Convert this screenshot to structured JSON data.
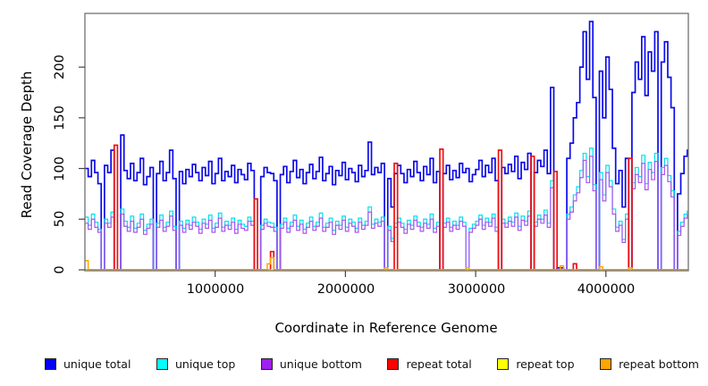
{
  "chart_data": {
    "type": "line",
    "subtype": "step-coverage-plot",
    "title": "",
    "xlabel": "Coordinate in Reference Genome",
    "ylabel": "Read Coverage Depth",
    "xlim": [
      0,
      4633000
    ],
    "ylim": [
      0,
      253
    ],
    "grid": false,
    "legend_position": "bottom",
    "x_ticks": [
      1000000,
      2000000,
      3000000,
      4000000
    ],
    "y_ticks": [
      0,
      50,
      100,
      150,
      200
    ],
    "x_tick_labels": [
      "1000000",
      "2000000",
      "3000000",
      "4000000"
    ],
    "y_tick_labels": [
      "0",
      "50",
      "100",
      "150",
      "200"
    ],
    "bin_size": 25000,
    "x_start": 0,
    "axis_color": "#444444",
    "box_color": "#7a7a7a",
    "series": [
      {
        "name": "unique total",
        "color": "#0b0be8",
        "width": 1.7,
        "values": [
          100,
          92,
          108,
          96,
          85,
          0,
          103,
          96,
          118,
          0,
          0,
          133,
          98,
          90,
          105,
          88,
          96,
          110,
          84,
          92,
          101,
          0,
          95,
          107,
          88,
          96,
          118,
          90,
          0,
          97,
          85,
          99,
          92,
          104,
          96,
          88,
          101,
          93,
          107,
          85,
          95,
          110,
          88,
          97,
          92,
          103,
          86,
          99,
          94,
          89,
          105,
          98,
          0,
          0,
          92,
          101,
          96,
          95,
          88,
          0,
          94,
          102,
          86,
          97,
          108,
          91,
          99,
          85,
          96,
          104,
          90,
          97,
          111,
          88,
          95,
          102,
          84,
          98,
          93,
          106,
          89,
          100,
          96,
          87,
          103,
          92,
          98,
          126,
          94,
          101,
          96,
          105,
          0,
          90,
          62,
          95,
          103,
          95,
          86,
          99,
          92,
          107,
          96,
          88,
          102,
          94,
          110,
          86,
          97,
          0,
          95,
          103,
          89,
          98,
          91,
          105,
          96,
          100,
          87,
          94,
          99,
          108,
          92,
          103,
          96,
          110,
          88,
          0,
          101,
          95,
          104,
          97,
          112,
          90,
          106,
          99,
          115,
          0,
          96,
          108,
          102,
          118,
          95,
          180,
          0,
          2,
          2,
          0,
          110,
          125,
          150,
          165,
          200,
          235,
          188,
          245,
          170,
          0,
          196,
          150,
          210,
          178,
          120,
          85,
          98,
          62,
          110,
          0,
          175,
          205,
          188,
          230,
          172,
          215,
          196,
          235,
          0,
          205,
          225,
          190,
          160,
          0,
          75,
          95,
          112,
          118
        ]
      },
      {
        "name": "unique top",
        "color": "#00e0ee",
        "width": 1.2,
        "values": [
          52,
          44,
          55,
          47,
          40,
          0,
          50,
          46,
          57,
          0,
          0,
          60,
          48,
          42,
          53,
          41,
          46,
          55,
          39,
          45,
          50,
          0,
          46,
          54,
          42,
          47,
          58,
          43,
          0,
          48,
          41,
          49,
          44,
          52,
          47,
          40,
          50,
          45,
          54,
          41,
          46,
          56,
          42,
          48,
          44,
          51,
          40,
          49,
          45,
          43,
          52,
          48,
          0,
          0,
          44,
          50,
          47,
          46,
          42,
          0,
          45,
          51,
          41,
          47,
          54,
          43,
          49,
          40,
          46,
          52,
          43,
          47,
          56,
          42,
          46,
          51,
          39,
          48,
          44,
          53,
          42,
          50,
          47,
          41,
          51,
          44,
          48,
          62,
          45,
          50,
          47,
          52,
          0,
          43,
          31,
          46,
          51,
          46,
          40,
          49,
          44,
          53,
          47,
          42,
          50,
          45,
          55,
          41,
          47,
          0,
          46,
          51,
          42,
          48,
          44,
          52,
          47,
          0,
          41,
          45,
          48,
          54,
          44,
          51,
          47,
          55,
          42,
          0,
          50,
          46,
          52,
          47,
          56,
          43,
          53,
          48,
          58,
          0,
          47,
          54,
          50,
          59,
          46,
          88,
          0,
          1,
          1,
          0,
          55,
          62,
          74,
          82,
          98,
          115,
          92,
          120,
          84,
          0,
          96,
          74,
          103,
          88,
          60,
          42,
          48,
          30,
          55,
          0,
          86,
          101,
          92,
          113,
          85,
          106,
          96,
          115,
          0,
          101,
          110,
          93,
          78,
          0,
          38,
          47,
          55,
          58
        ]
      },
      {
        "name": "unique bottom",
        "color": "#a855ef",
        "width": 1.2,
        "values": [
          46,
          40,
          50,
          42,
          37,
          0,
          46,
          42,
          52,
          0,
          0,
          55,
          43,
          38,
          48,
          37,
          42,
          50,
          35,
          41,
          45,
          0,
          42,
          49,
          38,
          43,
          53,
          39,
          0,
          44,
          37,
          45,
          40,
          47,
          43,
          36,
          46,
          41,
          49,
          37,
          42,
          51,
          38,
          44,
          40,
          47,
          36,
          45,
          41,
          39,
          48,
          44,
          0,
          0,
          40,
          46,
          43,
          42,
          38,
          0,
          41,
          47,
          37,
          43,
          49,
          39,
          45,
          36,
          42,
          48,
          39,
          43,
          51,
          38,
          42,
          47,
          35,
          44,
          40,
          49,
          38,
          46,
          43,
          37,
          47,
          40,
          44,
          57,
          41,
          46,
          43,
          48,
          0,
          39,
          28,
          42,
          47,
          42,
          36,
          45,
          40,
          49,
          43,
          38,
          46,
          41,
          50,
          37,
          43,
          0,
          42,
          47,
          38,
          44,
          40,
          48,
          43,
          0,
          37,
          41,
          44,
          50,
          40,
          47,
          43,
          51,
          38,
          0,
          46,
          42,
          48,
          43,
          52,
          39,
          49,
          44,
          53,
          0,
          43,
          50,
          46,
          54,
          42,
          81,
          0,
          1,
          1,
          0,
          50,
          57,
          68,
          76,
          91,
          108,
          86,
          112,
          78,
          0,
          89,
          68,
          96,
          82,
          55,
          38,
          44,
          27,
          50,
          0,
          80,
          94,
          86,
          105,
          79,
          99,
          89,
          107,
          0,
          94,
          103,
          87,
          72,
          0,
          34,
          43,
          51,
          54
        ]
      },
      {
        "name": "repeat total",
        "color": "#ee1111",
        "width": 1.7,
        "values": [
          0,
          0,
          0,
          0,
          0,
          0,
          0,
          0,
          0,
          123,
          0,
          0,
          0,
          0,
          0,
          0,
          0,
          0,
          0,
          0,
          0,
          0,
          0,
          0,
          0,
          0,
          0,
          0,
          0,
          0,
          0,
          0,
          0,
          0,
          0,
          0,
          0,
          0,
          0,
          0,
          0,
          0,
          0,
          0,
          0,
          0,
          0,
          0,
          0,
          0,
          0,
          0,
          70,
          0,
          0,
          0,
          0,
          18,
          0,
          0,
          0,
          0,
          0,
          0,
          0,
          0,
          0,
          0,
          0,
          0,
          0,
          0,
          0,
          0,
          0,
          0,
          0,
          0,
          0,
          0,
          0,
          0,
          0,
          0,
          0,
          0,
          0,
          0,
          0,
          0,
          0,
          0,
          0,
          0,
          0,
          105,
          0,
          0,
          0,
          0,
          0,
          0,
          0,
          0,
          0,
          0,
          0,
          0,
          0,
          119,
          0,
          0,
          0,
          0,
          0,
          0,
          0,
          0,
          0,
          0,
          0,
          0,
          0,
          0,
          0,
          0,
          0,
          118,
          0,
          0,
          0,
          0,
          0,
          0,
          0,
          0,
          0,
          112,
          0,
          0,
          0,
          0,
          0,
          0,
          97,
          0,
          0,
          0,
          0,
          0,
          6,
          0,
          0,
          0,
          0,
          0,
          0,
          0,
          0,
          0,
          0,
          0,
          0,
          0,
          0,
          0,
          0,
          110,
          0,
          0,
          0,
          0,
          0,
          0,
          0,
          0,
          0,
          0,
          0,
          0,
          0,
          0,
          0,
          0,
          0,
          0
        ]
      },
      {
        "name": "repeat top",
        "color": "#ffff00",
        "width": 1.0,
        "values": [
          0,
          0,
          0,
          0,
          0,
          0,
          0,
          0,
          0,
          0,
          0,
          0,
          0,
          0,
          0,
          0,
          0,
          0,
          0,
          0,
          0,
          0,
          0,
          0,
          0,
          0,
          0,
          0,
          0,
          0,
          0,
          0,
          0,
          0,
          0,
          0,
          0,
          0,
          0,
          0,
          0,
          0,
          0,
          0,
          0,
          0,
          0,
          0,
          0,
          0,
          0,
          0,
          0,
          0,
          0,
          0,
          0,
          0,
          0,
          0,
          0,
          0,
          0,
          0,
          0,
          0,
          0,
          0,
          0,
          0,
          0,
          0,
          0,
          0,
          0,
          0,
          0,
          0,
          0,
          0,
          0,
          0,
          0,
          0,
          0,
          0,
          0,
          0,
          0,
          0,
          0,
          0,
          0,
          0,
          0,
          0,
          0,
          0,
          0,
          0,
          0,
          0,
          0,
          0,
          0,
          0,
          0,
          0,
          0,
          0,
          0,
          0,
          0,
          0,
          0,
          0,
          0,
          0,
          0,
          0,
          0,
          0,
          0,
          0,
          0,
          0,
          0,
          0,
          0,
          0,
          0,
          0,
          0,
          0,
          0,
          0,
          0,
          0,
          0,
          0,
          0,
          0,
          0,
          0,
          0,
          0,
          0,
          0,
          0,
          0,
          0,
          0,
          0,
          0,
          0,
          0,
          0,
          0,
          0,
          0,
          0,
          0,
          0,
          0,
          0,
          0,
          0,
          0,
          0,
          0,
          0,
          0,
          0,
          0,
          0,
          0,
          0,
          0,
          0,
          0,
          0,
          0,
          0,
          0,
          0,
          0
        ]
      },
      {
        "name": "repeat bottom",
        "color": "#ffa500",
        "width": 1.5,
        "values": [
          9,
          0,
          0,
          0,
          0,
          0,
          0,
          0,
          0,
          0,
          0,
          0,
          0,
          0,
          0,
          0,
          0,
          0,
          0,
          0,
          0,
          0,
          0,
          0,
          0,
          0,
          0,
          0,
          0,
          0,
          0,
          0,
          0,
          0,
          0,
          0,
          0,
          0,
          0,
          0,
          0,
          0,
          0,
          0,
          0,
          0,
          0,
          0,
          0,
          0,
          0,
          0,
          0,
          0,
          0,
          0,
          6,
          12,
          0,
          0,
          0,
          0,
          0,
          0,
          0,
          0,
          0,
          0,
          0,
          0,
          0,
          0,
          0,
          0,
          0,
          0,
          0,
          0,
          0,
          0,
          0,
          0,
          0,
          0,
          0,
          0,
          0,
          0,
          0,
          0,
          0,
          0,
          2,
          0,
          0,
          0,
          0,
          0,
          0,
          0,
          0,
          0,
          0,
          0,
          0,
          0,
          0,
          0,
          0,
          0,
          0,
          0,
          0,
          0,
          0,
          0,
          0,
          2,
          0,
          0,
          0,
          0,
          0,
          0,
          0,
          0,
          0,
          0,
          0,
          0,
          0,
          0,
          0,
          0,
          0,
          0,
          0,
          0,
          0,
          0,
          0,
          0,
          0,
          0,
          0,
          0,
          4,
          0,
          0,
          0,
          0,
          0,
          0,
          0,
          0,
          0,
          0,
          0,
          3,
          0,
          0,
          0,
          0,
          0,
          0,
          0,
          0,
          2,
          0,
          0,
          0,
          0,
          0,
          0,
          0,
          0,
          0,
          0,
          0,
          0,
          0,
          0,
          0,
          0,
          0,
          0
        ]
      }
    ],
    "legend": [
      {
        "label": "unique total",
        "fill": "#0000ff"
      },
      {
        "label": "unique top",
        "fill": "#00ffff"
      },
      {
        "label": "unique bottom",
        "fill": "#a020f0"
      },
      {
        "label": "repeat total",
        "fill": "#ff0000"
      },
      {
        "label": "repeat top",
        "fill": "#ffff00"
      },
      {
        "label": "repeat bottom",
        "fill": "#ffa500"
      }
    ]
  }
}
